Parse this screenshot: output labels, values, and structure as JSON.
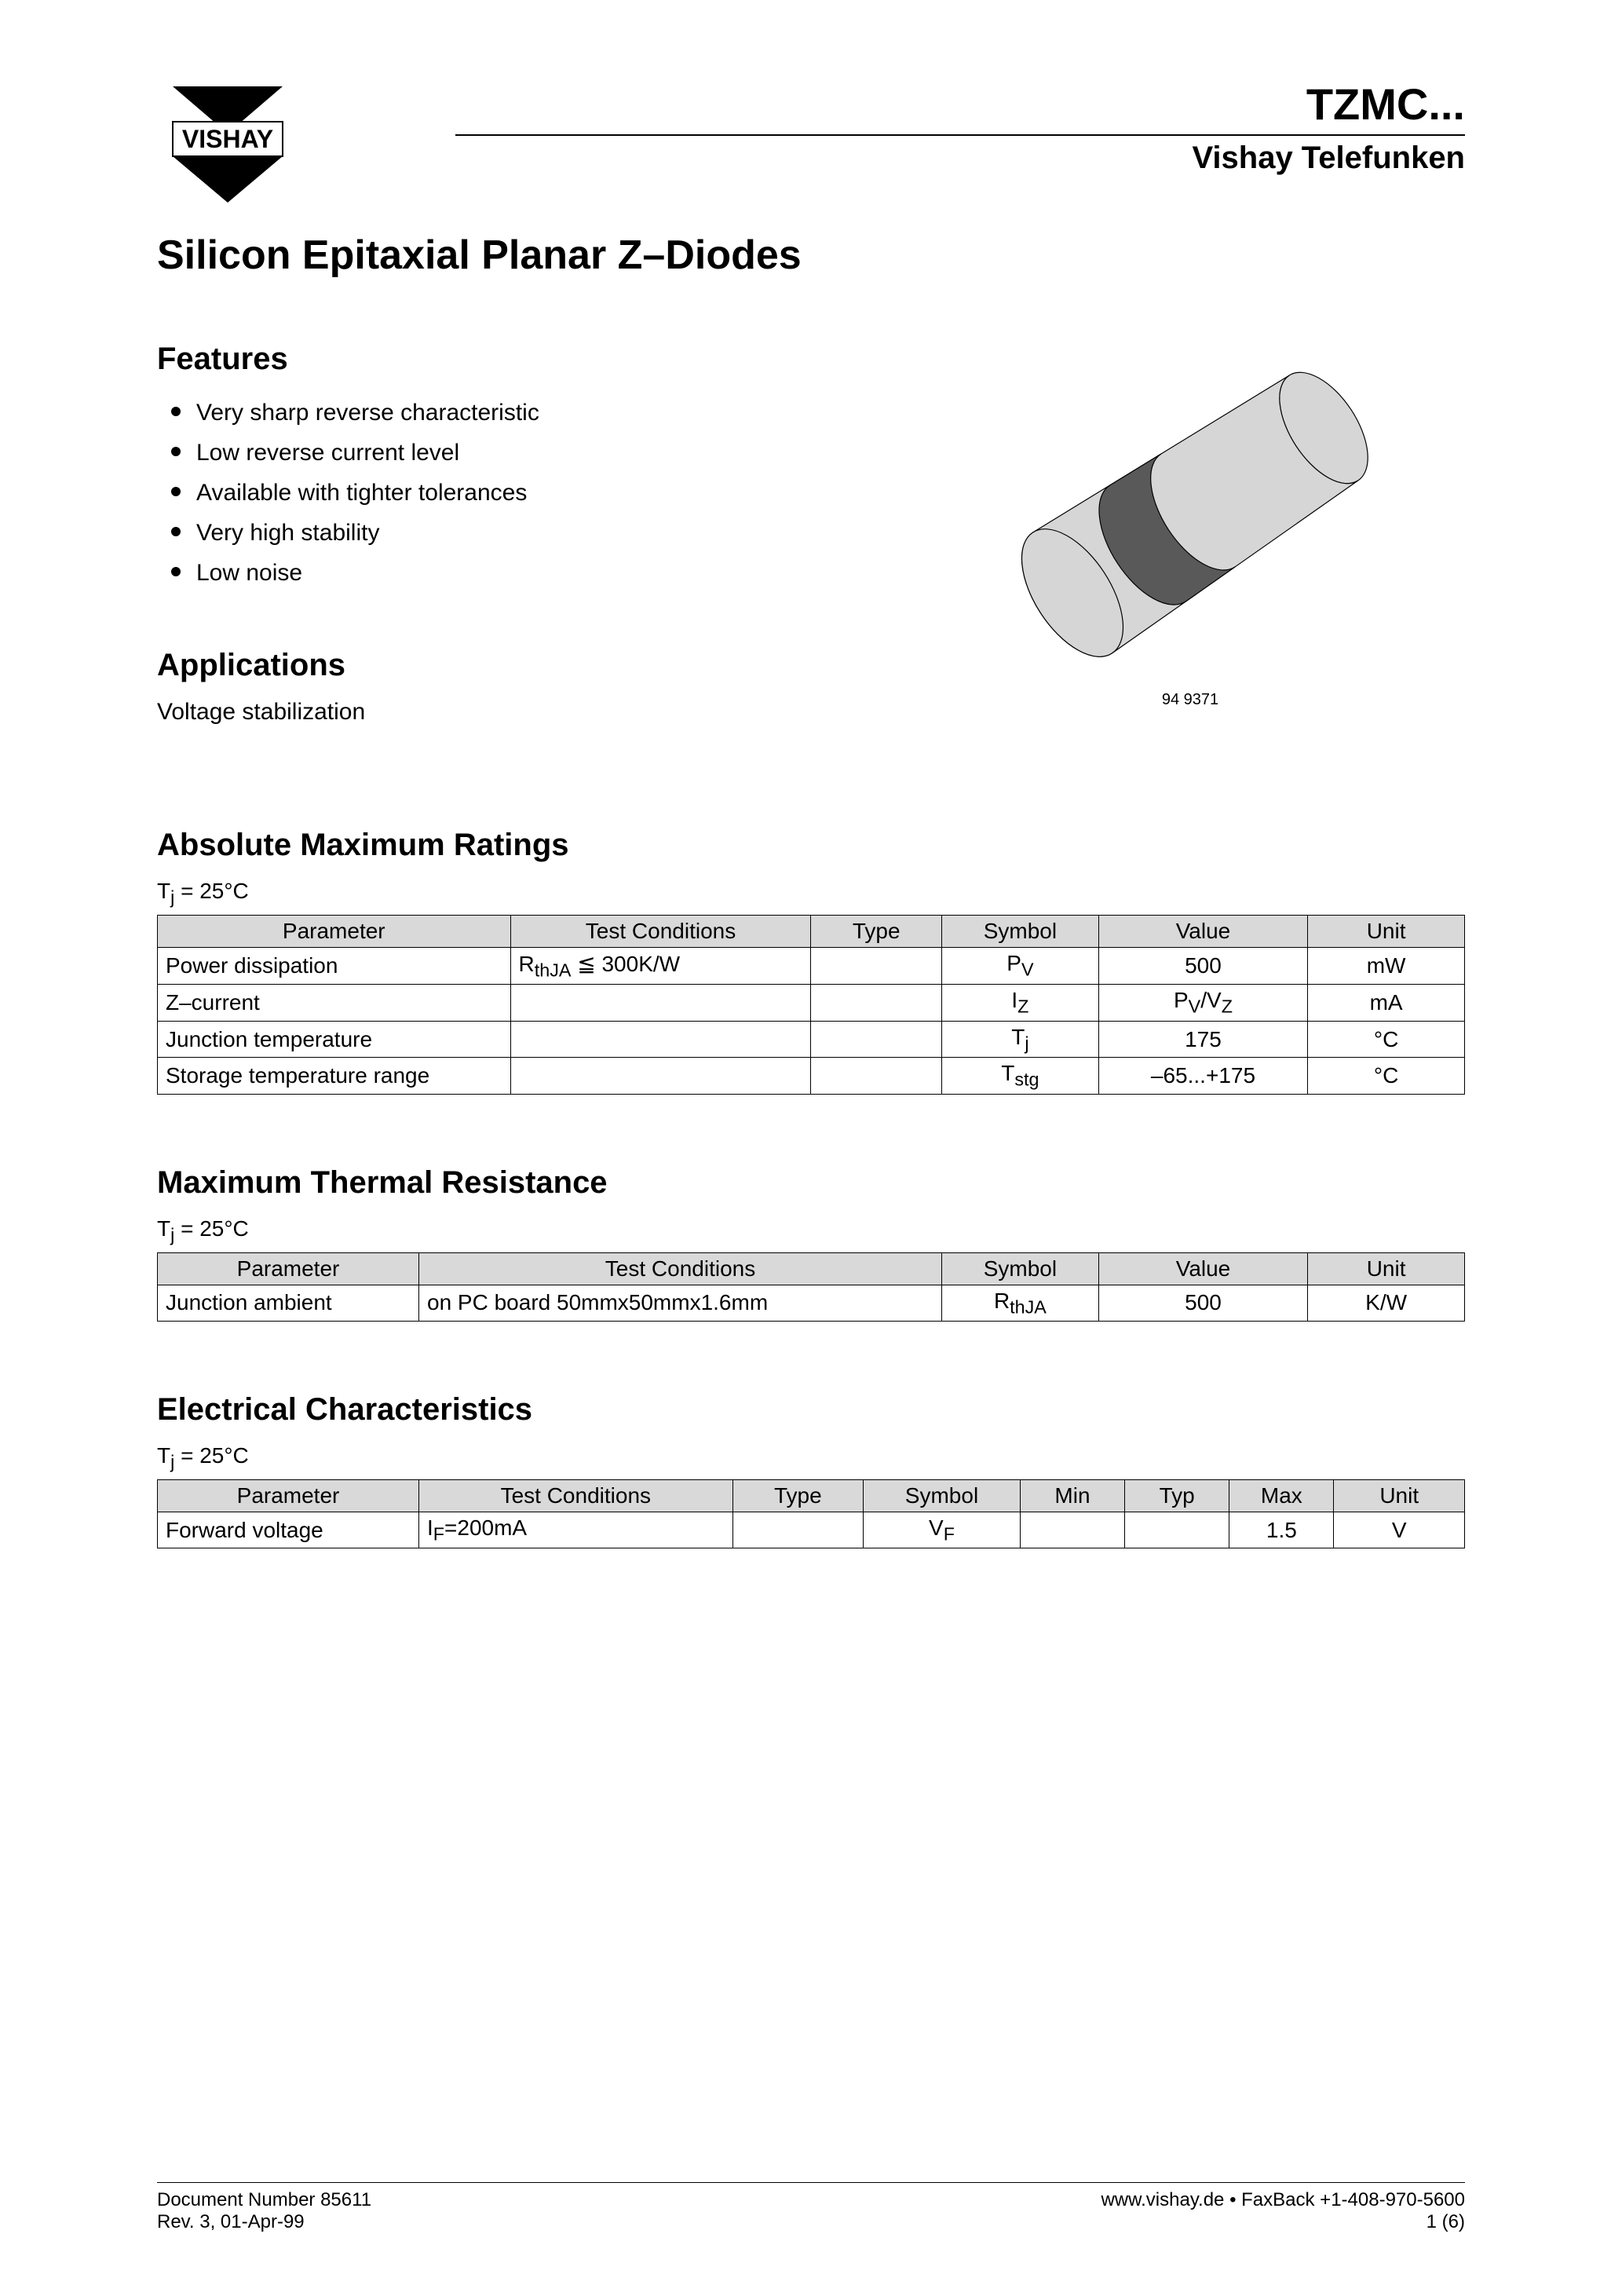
{
  "header": {
    "logo_text": "VISHAY",
    "part_number": "TZMC...",
    "brand_sub": "Vishay Telefunken"
  },
  "main_title": "Silicon Epitaxial Planar Z–Diodes",
  "features": {
    "heading": "Features",
    "items": [
      "Very sharp reverse characteristic",
      "Low reverse current level",
      "Available with tighter tolerances",
      "Very high stability",
      "Low noise"
    ]
  },
  "applications": {
    "heading": "Applications",
    "text": "Voltage stabilization"
  },
  "image_caption": "94 9371",
  "component_drawing": {
    "body_fill": "#d6d6d6",
    "band_fill": "#595959",
    "outline": "#000000",
    "outline_width": 1.2
  },
  "amr": {
    "heading": "Absolute Maximum Ratings",
    "condition_html": "T<sub>j</sub> = 25°C",
    "columns": [
      "Parameter",
      "Test Conditions",
      "Type",
      "Symbol",
      "Value",
      "Unit"
    ],
    "col_widths_pct": [
      27,
      23,
      10,
      12,
      16,
      12
    ],
    "rows": [
      {
        "parameter": "Power dissipation",
        "test_cond_html": "R<sub>thJA</sub> ≦ 300K/W",
        "type": "",
        "symbol_html": "P<sub>V</sub>",
        "value": "500",
        "unit": "mW"
      },
      {
        "parameter": "Z–current",
        "test_cond_html": "",
        "type": "",
        "symbol_html": "I<sub>Z</sub>",
        "value_html": "P<sub>V</sub>/V<sub>Z</sub>",
        "unit": "mA"
      },
      {
        "parameter": "Junction temperature",
        "test_cond_html": "",
        "type": "",
        "symbol_html": "T<sub>j</sub>",
        "value": "175",
        "unit": "°C"
      },
      {
        "parameter": "Storage temperature range",
        "test_cond_html": "",
        "type": "",
        "symbol_html": "T<sub>stg</sub>",
        "value": "–65...+175",
        "unit": "°C"
      }
    ]
  },
  "mtr": {
    "heading": "Maximum Thermal Resistance",
    "condition_html": "T<sub>j</sub> = 25°C",
    "columns": [
      "Parameter",
      "Test Conditions",
      "Symbol",
      "Value",
      "Unit"
    ],
    "col_widths_pct": [
      20,
      40,
      12,
      16,
      12
    ],
    "rows": [
      {
        "parameter": "Junction ambient",
        "test_cond": "on PC board 50mmx50mmx1.6mm",
        "symbol_html": "R<sub>thJA</sub>",
        "value": "500",
        "unit": "K/W"
      }
    ]
  },
  "ec": {
    "heading": "Electrical Characteristics",
    "condition_html": "T<sub>j</sub> = 25°C",
    "columns": [
      "Parameter",
      "Test Conditions",
      "Type",
      "Symbol",
      "Min",
      "Typ",
      "Max",
      "Unit"
    ],
    "col_widths_pct": [
      20,
      24,
      10,
      12,
      8,
      8,
      8,
      10
    ],
    "rows": [
      {
        "parameter": "Forward voltage",
        "test_cond_html": "I<sub>F</sub>=200mA",
        "type": "",
        "symbol_html": "V<sub>F</sub>",
        "min": "",
        "typ": "",
        "max": "1.5",
        "unit": "V"
      }
    ]
  },
  "footer": {
    "doc_number": "Document Number 85611",
    "revision": "Rev. 3, 01-Apr-99",
    "web": "www.vishay.de • FaxBack +1-408-970-5600",
    "page": "1 (6)"
  }
}
